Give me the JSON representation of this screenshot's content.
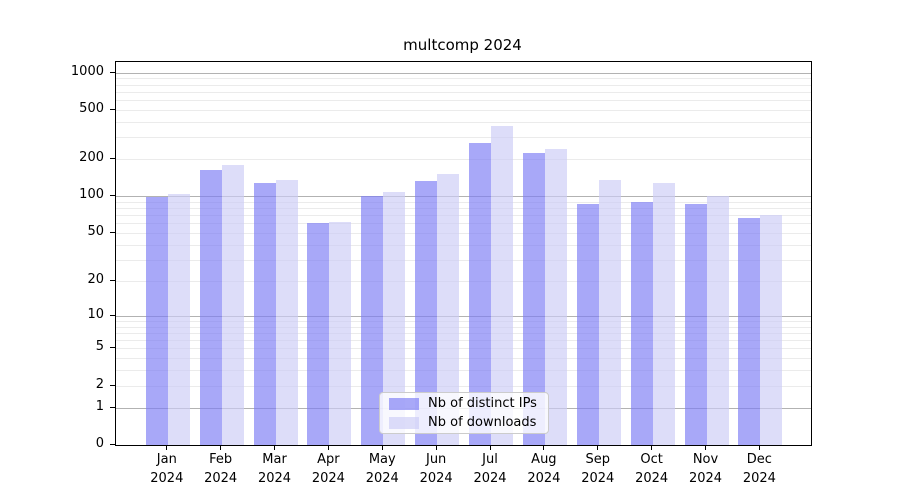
{
  "chart_data": {
    "type": "bar",
    "title": "multcomp 2024",
    "xlabel": "",
    "ylabel": "",
    "categories": [
      "Jan",
      "Feb",
      "Mar",
      "Apr",
      "May",
      "Jun",
      "Jul",
      "Aug",
      "Sep",
      "Oct",
      "Nov",
      "Dec"
    ],
    "year_label": "2024",
    "series": [
      {
        "name": "Nb of distinct IPs",
        "color": "rgba(123,123,245,0.66)",
        "values": [
          98,
          163,
          128,
          60,
          100,
          133,
          272,
          224,
          86,
          90,
          87,
          66
        ]
      },
      {
        "name": "Nb of downloads",
        "color": "rgba(203,203,246,0.66)",
        "values": [
          104,
          180,
          135,
          62,
          108,
          152,
          371,
          241,
          135,
          128,
          100,
          71
        ]
      }
    ],
    "yticks": [
      0,
      1,
      2,
      5,
      10,
      20,
      50,
      100,
      200,
      500,
      1000
    ],
    "ylim": [
      0,
      1220
    ],
    "scale": "log1p",
    "grid": "on",
    "legend_position": "bottom-center",
    "colors": {
      "major_grid": "#b2b2b2",
      "minor_grid": "#ebebeb",
      "axis": "#000000",
      "legend_border": "#cccccc"
    }
  }
}
